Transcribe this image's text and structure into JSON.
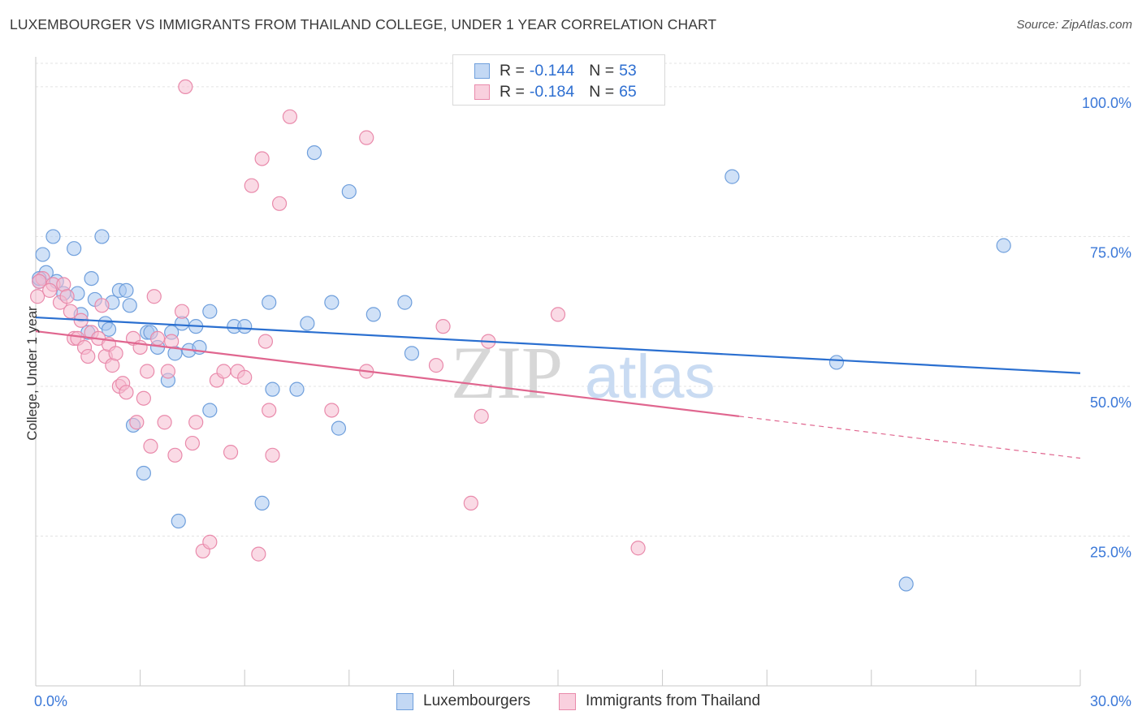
{
  "title": "LUXEMBOURGER VS IMMIGRANTS FROM THAILAND COLLEGE, UNDER 1 YEAR CORRELATION CHART",
  "source": "Source: ZipAtlas.com",
  "watermark": {
    "zip": "ZIP",
    "atlas": "atlas"
  },
  "legend": {
    "r_label": "R =",
    "n_label": "N =",
    "series_a": {
      "r": "-0.144",
      "n": "53"
    },
    "series_b": {
      "r": "-0.184",
      "n": "65"
    }
  },
  "chart_data": {
    "type": "scatter",
    "title": "LUXEMBOURGER VS IMMIGRANTS FROM THAILAND COLLEGE, UNDER 1 YEAR CORRELATION CHART",
    "xlabel": "",
    "ylabel": "College, Under 1 year",
    "xlim": [
      0,
      30
    ],
    "ylim": [
      0,
      105
    ],
    "x_tick_labels": [
      "0.0%",
      "30.0%"
    ],
    "y_ticks": [
      25,
      50,
      75,
      100
    ],
    "y_tick_labels": [
      "25.0%",
      "50.0%",
      "75.0%",
      "100.0%"
    ],
    "grid": true,
    "legend_position": "top-center",
    "colors": {
      "series_a_fill": "#a9c8f0",
      "series_a_stroke": "#6f9fdc",
      "series_a_line": "#2a6fd0",
      "series_b_fill": "#f6bcd0",
      "series_b_stroke": "#e98aab",
      "series_b_line": "#e0668f",
      "tick_label": "#3b78d8"
    },
    "series": [
      {
        "name": "Luxembourgers",
        "trend": {
          "x": [
            0,
            30
          ],
          "y": [
            61.5,
            52.2
          ],
          "style": "solid"
        },
        "points": [
          [
            0.1,
            67.5
          ],
          [
            0.2,
            72
          ],
          [
            0.3,
            69
          ],
          [
            0.5,
            75
          ],
          [
            0.6,
            67.5
          ],
          [
            0.8,
            65.5
          ],
          [
            1.1,
            73
          ],
          [
            1.2,
            65.5
          ],
          [
            1.3,
            62
          ],
          [
            1.5,
            59
          ],
          [
            1.6,
            68
          ],
          [
            1.7,
            64.5
          ],
          [
            1.9,
            75
          ],
          [
            2.0,
            60.5
          ],
          [
            2.1,
            59.5
          ],
          [
            2.2,
            64
          ],
          [
            2.4,
            66
          ],
          [
            2.6,
            66
          ],
          [
            2.7,
            63.5
          ],
          [
            2.8,
            43.5
          ],
          [
            3.1,
            35.5
          ],
          [
            3.2,
            59
          ],
          [
            3.3,
            59
          ],
          [
            3.5,
            56.5
          ],
          [
            3.8,
            51
          ],
          [
            3.9,
            59
          ],
          [
            4.0,
            55.5
          ],
          [
            4.1,
            27.5
          ],
          [
            4.2,
            60.5
          ],
          [
            4.4,
            56
          ],
          [
            4.6,
            60
          ],
          [
            4.7,
            56.5
          ],
          [
            5.0,
            46
          ],
          [
            5.0,
            62.5
          ],
          [
            5.7,
            60
          ],
          [
            6.0,
            60
          ],
          [
            6.5,
            30.5
          ],
          [
            6.7,
            64
          ],
          [
            6.8,
            49.5
          ],
          [
            7.5,
            49.5
          ],
          [
            7.8,
            60.5
          ],
          [
            8.0,
            89
          ],
          [
            8.5,
            64
          ],
          [
            8.7,
            43
          ],
          [
            9.0,
            82.5
          ],
          [
            9.7,
            62
          ],
          [
            10.6,
            64
          ],
          [
            10.8,
            55.5
          ],
          [
            20.0,
            85
          ],
          [
            23.0,
            54
          ],
          [
            25.0,
            17
          ],
          [
            27.8,
            73.5
          ],
          [
            0.1,
            68
          ]
        ]
      },
      {
        "name": "Immigrants from Thailand",
        "trend": {
          "x": [
            0,
            20.2
          ],
          "y": [
            59.2,
            45
          ],
          "style": "solid",
          "extension": {
            "x": [
              20.2,
              30
            ],
            "y": [
              45,
              38
            ]
          }
        },
        "points": [
          [
            0.05,
            65
          ],
          [
            0.2,
            68
          ],
          [
            0.5,
            67
          ],
          [
            0.7,
            64
          ],
          [
            0.8,
            67
          ],
          [
            0.9,
            65
          ],
          [
            1.0,
            62.5
          ],
          [
            1.1,
            58
          ],
          [
            1.2,
            58
          ],
          [
            1.3,
            61
          ],
          [
            1.4,
            56.5
          ],
          [
            1.5,
            55
          ],
          [
            1.6,
            59
          ],
          [
            1.8,
            58
          ],
          [
            1.9,
            63.5
          ],
          [
            2.0,
            55
          ],
          [
            2.1,
            57
          ],
          [
            2.2,
            53.5
          ],
          [
            2.3,
            55.5
          ],
          [
            2.4,
            50
          ],
          [
            2.5,
            50.5
          ],
          [
            2.6,
            49
          ],
          [
            2.8,
            58
          ],
          [
            2.9,
            44
          ],
          [
            3.0,
            56.5
          ],
          [
            3.1,
            48
          ],
          [
            3.2,
            52.5
          ],
          [
            3.3,
            40
          ],
          [
            3.4,
            65
          ],
          [
            3.5,
            58
          ],
          [
            3.7,
            44
          ],
          [
            3.8,
            52.5
          ],
          [
            3.9,
            57.5
          ],
          [
            4.0,
            38.5
          ],
          [
            4.2,
            62.5
          ],
          [
            4.3,
            100
          ],
          [
            4.5,
            40.5
          ],
          [
            4.6,
            44
          ],
          [
            4.8,
            22.5
          ],
          [
            5.0,
            24
          ],
          [
            5.2,
            51
          ],
          [
            5.4,
            52.5
          ],
          [
            5.6,
            39
          ],
          [
            5.8,
            52.5
          ],
          [
            6.0,
            51.5
          ],
          [
            6.2,
            83.5
          ],
          [
            6.4,
            22
          ],
          [
            6.5,
            88
          ],
          [
            6.6,
            57.5
          ],
          [
            6.7,
            46
          ],
          [
            6.8,
            38.5
          ],
          [
            7.0,
            80.5
          ],
          [
            7.3,
            95
          ],
          [
            8.5,
            46
          ],
          [
            9.5,
            91.5
          ],
          [
            9.5,
            52.5
          ],
          [
            11.5,
            53.5
          ],
          [
            11.7,
            60
          ],
          [
            12.5,
            30.5
          ],
          [
            12.8,
            45
          ],
          [
            13.0,
            57.5
          ],
          [
            15.0,
            62
          ],
          [
            17.3,
            23
          ],
          [
            0.1,
            67.5
          ],
          [
            0.4,
            66
          ]
        ]
      }
    ]
  }
}
